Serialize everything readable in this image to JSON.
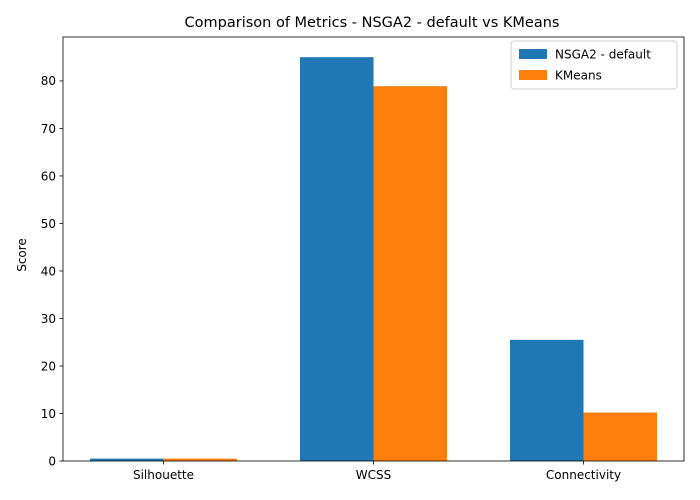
{
  "chart_data": {
    "type": "bar",
    "title": "Comparison of Metrics - NSGA2 - default vs KMeans",
    "xlabel": "",
    "ylabel": "Score",
    "categories": [
      "Silhouette",
      "WCSS",
      "Connectivity"
    ],
    "series": [
      {
        "name": "NSGA2 - default",
        "color": "#1f77b4",
        "values": [
          0.5,
          85.0,
          25.5
        ]
      },
      {
        "name": "KMeans",
        "color": "#ff7f0e",
        "values": [
          0.5,
          78.9,
          10.2
        ]
      }
    ],
    "ylim": [
      0,
      89.25
    ],
    "yticks": [
      0,
      10,
      20,
      30,
      40,
      50,
      60,
      70,
      80
    ],
    "grid": false,
    "legend_position": "top-right"
  }
}
